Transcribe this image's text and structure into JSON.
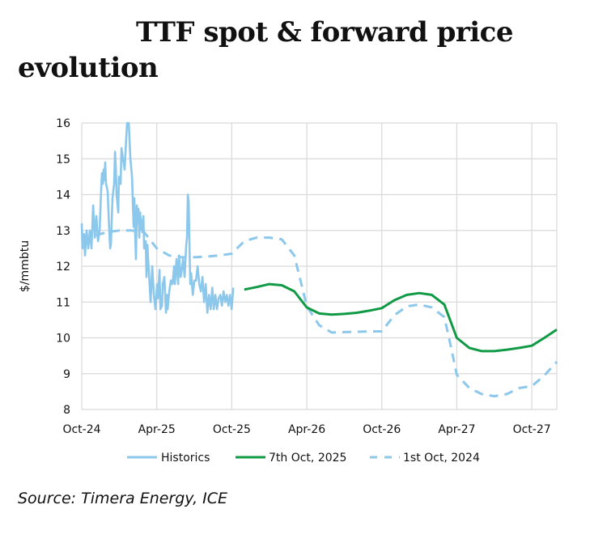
{
  "title": {
    "line1": "TTF spot & forward price",
    "line2": "evolution"
  },
  "source": "Source: Timera Energy, ICE",
  "chart_data": {
    "type": "line",
    "title": "TTF spot & forward price evolution",
    "xlabel": "",
    "ylabel": "$/mmbtu",
    "ylim": [
      8,
      16
    ],
    "yticks": [
      "8",
      "9",
      "10",
      "11",
      "12",
      "13",
      "14",
      "15",
      "16"
    ],
    "x_unit": "months since Oct-24",
    "xlim": [
      0,
      38
    ],
    "xticks": [
      {
        "month": 0,
        "label": "Oct-24"
      },
      {
        "month": 6,
        "label": "Apr-25"
      },
      {
        "month": 12,
        "label": "Oct-25"
      },
      {
        "month": 18,
        "label": "Apr-26"
      },
      {
        "month": 24,
        "label": "Oct-26"
      },
      {
        "month": 30,
        "label": "Apr-27"
      },
      {
        "month": 36,
        "label": "Oct-27"
      }
    ],
    "grid": true,
    "legend": "bottom",
    "series": [
      {
        "name": "Historics",
        "color": "#8cc7ec",
        "style": "solid",
        "x": [
          0,
          0.06,
          0.19,
          0.26,
          0.39,
          0.52,
          0.65,
          0.78,
          0.91,
          0.97,
          1.04,
          1.17,
          1.3,
          1.43,
          1.56,
          1.62,
          1.69,
          1.75,
          1.81,
          1.88,
          1.94,
          2.07,
          2.2,
          2.27,
          2.33,
          2.46,
          2.59,
          2.66,
          2.72,
          2.79,
          2.92,
          2.98,
          3.11,
          3.18,
          3.3,
          3.43,
          3.56,
          3.63,
          3.76,
          3.89,
          4.02,
          4.15,
          4.21,
          4.28,
          4.34,
          4.41,
          4.47,
          4.54,
          4.6,
          4.67,
          4.8,
          4.93,
          4.99,
          5.12,
          5.18,
          5.25,
          5.31,
          5.38,
          5.51,
          5.64,
          5.77,
          5.9,
          6.03,
          6.09,
          6.22,
          6.29,
          6.42,
          6.48,
          6.61,
          6.74,
          6.81,
          6.87,
          7.0,
          7.13,
          7.26,
          7.39,
          7.45,
          7.58,
          7.71,
          7.78,
          7.91,
          8.04,
          8.1,
          8.23,
          8.36,
          8.42,
          8.49,
          8.55,
          8.62,
          8.68,
          8.75,
          8.88,
          9.01,
          9.14,
          9.27,
          9.4,
          9.53,
          9.66,
          9.79,
          9.92,
          10.05,
          10.18,
          10.31,
          10.44,
          10.56,
          10.69,
          10.82,
          10.95,
          11.08,
          11.21,
          11.34,
          11.47,
          11.6,
          11.73,
          11.86,
          11.99,
          12.12
        ],
        "y": [
          13.2,
          12.5,
          12.9,
          12.3,
          13.0,
          12.5,
          13.0,
          12.5,
          13.7,
          13.3,
          12.8,
          13.4,
          12.7,
          13.0,
          14.2,
          14.6,
          14.3,
          14.7,
          14.4,
          14.9,
          14.3,
          14.1,
          13.0,
          12.5,
          12.6,
          13.9,
          14.3,
          15.2,
          14.8,
          14.0,
          13.5,
          14.5,
          14.3,
          15.3,
          15.0,
          14.7,
          15.6,
          16.0,
          16.0,
          15.0,
          14.5,
          13.1,
          13.9,
          12.8,
          12.2,
          13.7,
          13.2,
          13.6,
          12.8,
          13.5,
          13.0,
          13.4,
          12.5,
          12.7,
          11.7,
          12.6,
          12.2,
          11.8,
          11.0,
          12.0,
          11.2,
          10.8,
          11.5,
          11.1,
          11.9,
          10.8,
          10.9,
          11.5,
          11.7,
          10.7,
          11.2,
          10.8,
          11.3,
          11.6,
          11.5,
          12.0,
          11.5,
          12.2,
          11.5,
          12.3,
          11.7,
          12.0,
          12.2,
          11.7,
          12.6,
          12.8,
          14.0,
          13.8,
          12.5,
          11.5,
          11.8,
          11.2,
          11.6,
          11.6,
          12.0,
          11.5,
          11.3,
          11.7,
          11.0,
          11.5,
          10.7,
          11.2,
          10.8,
          11.4,
          10.8,
          11.2,
          10.8,
          11.1,
          11.2,
          10.9,
          11.3,
          11.0,
          11.2,
          10.9,
          11.2,
          10.8,
          11.4
        ]
      },
      {
        "name": "7th Oct, 2025",
        "color": "#119a45",
        "style": "solid",
        "x": [
          13,
          14,
          15,
          16,
          17,
          18,
          19,
          20,
          21,
          22,
          23,
          24,
          25,
          26,
          27,
          28,
          29,
          30,
          31,
          32,
          33,
          34,
          35,
          36,
          37,
          38
        ],
        "y": [
          11.35,
          11.42,
          11.5,
          11.47,
          11.3,
          10.85,
          10.68,
          10.65,
          10.67,
          10.7,
          10.76,
          10.83,
          11.05,
          11.2,
          11.25,
          11.2,
          10.93,
          10.0,
          9.72,
          9.63,
          9.63,
          9.67,
          9.72,
          9.78,
          10.0,
          10.23
        ]
      },
      {
        "name": "1st Oct, 2024",
        "color": "#8cc7ec",
        "style": "dashed",
        "x": [
          0,
          1,
          2,
          3,
          4,
          5,
          6,
          7,
          8,
          9,
          10,
          11,
          12,
          13,
          14,
          15,
          16,
          17,
          17.5,
          18,
          19,
          20,
          21,
          22,
          23,
          24,
          25,
          26,
          27,
          28,
          29,
          29.5,
          30,
          31,
          32,
          33,
          34,
          35,
          36,
          37,
          38
        ],
        "y": [
          12.7,
          12.85,
          12.95,
          13.0,
          13.0,
          12.95,
          12.5,
          12.3,
          12.25,
          12.25,
          12.27,
          12.3,
          12.35,
          12.7,
          12.8,
          12.8,
          12.75,
          12.3,
          11.6,
          10.88,
          10.35,
          10.15,
          10.16,
          10.17,
          10.18,
          10.18,
          10.63,
          10.88,
          10.93,
          10.85,
          10.58,
          9.8,
          8.97,
          8.6,
          8.43,
          8.37,
          8.43,
          8.6,
          8.65,
          8.95,
          9.33
        ]
      }
    ]
  }
}
